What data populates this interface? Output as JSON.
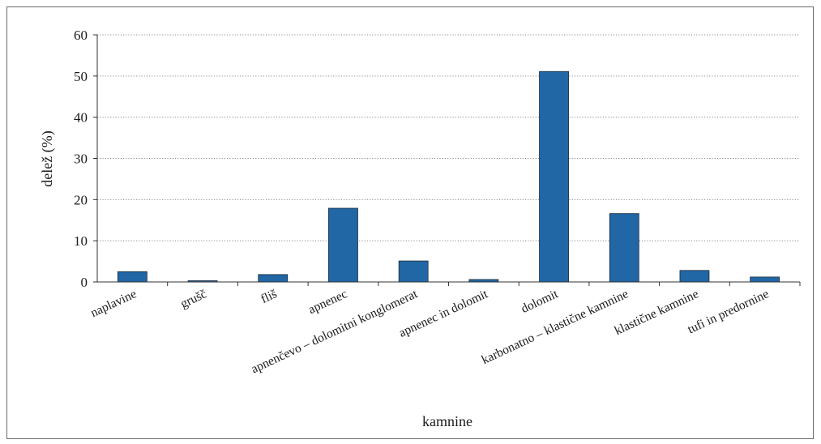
{
  "chart_data": {
    "type": "bar",
    "categories": [
      "naplavine",
      "grušč",
      "fliš",
      "apnenec",
      "apnenčevo – dolomitni konglomerat",
      "apnenec in dolomit",
      "dolomit",
      "karbonatno – klastične kamnine",
      "klastične kamnine",
      "tufi in predornine"
    ],
    "values": [
      2.5,
      0.3,
      1.8,
      17.9,
      5.1,
      0.6,
      51.1,
      16.6,
      2.8,
      1.2
    ],
    "xlabel": "kamnine",
    "ylabel": "delež (%)",
    "ylim": [
      0,
      60
    ],
    "yticks": [
      0,
      10,
      20,
      30,
      40,
      50,
      60
    ],
    "grid": true,
    "bar_color": "#2166a5"
  }
}
